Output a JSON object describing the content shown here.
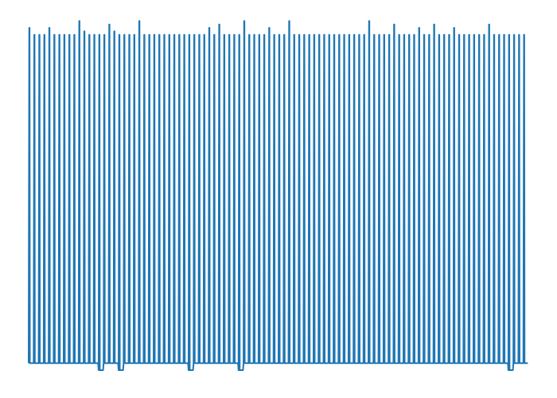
{
  "chart_data": {
    "type": "line",
    "title": "",
    "xlabel": "",
    "ylabel": "",
    "axes_visible": false,
    "grid": false,
    "legend": "none",
    "xlim": [
      0,
      100
    ],
    "ylim": [
      -0.05,
      1.0
    ],
    "series": [
      {
        "color": "#1f77b4",
        "peaks": [
          0.97,
          0.95,
          0.95,
          0.95,
          0.97,
          0.95,
          0.95,
          0.95,
          0.95,
          0.95,
          0.99,
          0.96,
          0.95,
          0.95,
          0.95,
          0.95,
          0.98,
          0.96,
          0.95,
          0.95,
          0.95,
          0.95,
          0.99,
          0.95,
          0.95,
          0.95,
          0.95,
          0.95,
          0.95,
          0.95,
          0.95,
          0.95,
          0.95,
          0.95,
          0.95,
          0.95,
          0.97,
          0.95,
          0.98,
          0.95,
          0.95,
          0.95,
          0.95,
          0.99,
          0.95,
          0.95,
          0.95,
          0.95,
          0.97,
          0.95,
          0.95,
          0.95,
          0.99,
          0.95,
          0.95,
          0.95,
          0.95,
          0.95,
          0.95,
          0.95,
          0.95,
          0.95,
          0.95,
          0.95,
          0.95,
          0.95,
          0.95,
          0.95,
          0.99,
          0.95,
          0.95,
          0.95,
          0.95,
          0.98,
          0.95,
          0.95,
          0.95,
          0.95,
          0.97,
          0.95,
          0.95,
          0.98,
          0.95,
          0.95,
          0.95,
          0.97,
          0.95,
          0.95,
          0.95,
          0.95,
          0.95,
          0.95,
          0.98,
          0.95,
          0.95,
          0.95,
          0.95,
          0.95,
          0.95,
          0.95
        ],
        "troughs": [
          0.0,
          0.0,
          0.0,
          0.0,
          0.0,
          0.0,
          0.0,
          0.0,
          0.0,
          0.0,
          0.0,
          0.0,
          0.0,
          0.0,
          -0.02,
          0.0,
          0.0,
          0.0,
          -0.02,
          0.0,
          0.0,
          0.0,
          0.0,
          0.0,
          0.0,
          0.0,
          0.0,
          0.0,
          0.0,
          0.0,
          0.0,
          0.0,
          -0.02,
          0.0,
          0.0,
          0.0,
          0.0,
          0.0,
          0.0,
          0.0,
          0.0,
          0.0,
          -0.02,
          0.0,
          0.0,
          0.0,
          0.0,
          0.0,
          0.0,
          0.0,
          0.0,
          0.0,
          0.0,
          0.0,
          0.0,
          0.0,
          0.0,
          0.0,
          0.0,
          0.0,
          0.0,
          0.0,
          0.0,
          0.0,
          0.0,
          0.0,
          0.0,
          0.0,
          0.0,
          0.0,
          0.0,
          0.0,
          0.0,
          0.0,
          0.0,
          0.0,
          0.0,
          0.0,
          0.0,
          0.0,
          0.0,
          0.0,
          0.0,
          0.0,
          0.0,
          0.0,
          0.0,
          0.0,
          0.0,
          0.0,
          0.0,
          0.0,
          0.0,
          0.0,
          0.0,
          0.0,
          -0.02,
          0.0,
          0.0,
          0.0
        ]
      }
    ]
  }
}
